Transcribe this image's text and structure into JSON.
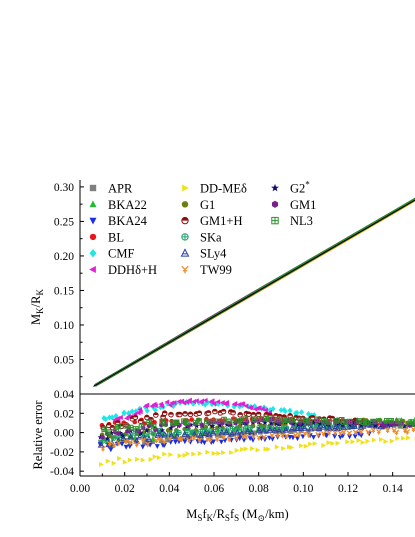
{
  "chart_data": [
    {
      "type": "line",
      "ylabel": "M_K/R_K",
      "xlim": [
        0.0,
        0.15
      ],
      "ylim": [
        0.0,
        0.31
      ],
      "y_ticks": [
        "0.30",
        "0.25",
        "0.20",
        "0.15",
        "0.10",
        "0.05"
      ],
      "y_tick_values": [
        0.3,
        0.25,
        0.2,
        0.15,
        0.1,
        0.05
      ],
      "grid": false,
      "legend_position": "top-left",
      "fit": {
        "x": [
          0.006,
          0.15
        ],
        "y": [
          0.011,
          0.281
        ]
      },
      "series": [
        {
          "name": "APR",
          "marker": "square",
          "color": "#808080",
          "x_end": 0.148
        },
        {
          "name": "BKA22",
          "marker": "triangle-up",
          "color": "#1fbf2f",
          "x_end": 0.15
        },
        {
          "name": "BKA24",
          "marker": "triangle-down",
          "color": "#1a2ee6",
          "x_end": 0.129
        },
        {
          "name": "BL",
          "marker": "circle",
          "color": "#e8161c",
          "x_end": 0.14
        },
        {
          "name": "CMF",
          "marker": "diamond",
          "color": "#20e6e6",
          "x_end": 0.105
        },
        {
          "name": "DDHδ+H",
          "marker": "triangle-left",
          "color": "#e020d4",
          "x_end": 0.085
        },
        {
          "name": "DD-MEδ",
          "marker": "triangle-right",
          "color": "#f0e21a",
          "x_end": 0.15
        },
        {
          "name": "G1",
          "marker": "circle",
          "color": "#6e7d12",
          "x_end": 0.15
        },
        {
          "name": "GM1+H",
          "marker": "half-circle",
          "color": "#8a1010",
          "x_end": 0.129
        },
        {
          "name": "SKa",
          "marker": "circle-plus",
          "color": "#1e9f6a",
          "x_end": 0.135
        },
        {
          "name": "SLy4",
          "marker": "triangle-open",
          "color": "#2c3f9f",
          "x_end": 0.14
        },
        {
          "name": "TW99",
          "marker": "y-shape",
          "color": "#f08a28",
          "x_end": 0.15
        },
        {
          "name": "G2*",
          "marker": "star",
          "color": "#10106e",
          "x_end": 0.145
        },
        {
          "name": "GM1",
          "marker": "hexagon",
          "color": "#7a1f8f",
          "x_end": 0.15
        },
        {
          "name": "NL3",
          "marker": "square-plus",
          "color": "#2e8f2e",
          "x_end": 0.15
        }
      ]
    },
    {
      "type": "scatter",
      "xlabel": "M_S f_K/R_S f_S (M_⊙/km)",
      "ylabel": "Relative error",
      "xlim": [
        0.0,
        0.15
      ],
      "ylim": [
        -0.045,
        0.04
      ],
      "x_ticks": [
        "0.00",
        "0.02",
        "0.04",
        "0.06",
        "0.08",
        "0.10",
        "0.12",
        "0.14"
      ],
      "x_tick_values": [
        0.0,
        0.02,
        0.04,
        0.06,
        0.08,
        0.1,
        0.12,
        0.14
      ],
      "y_ticks": [
        "0.04",
        "0.02",
        "0.00",
        "-0.02",
        "-0.04"
      ],
      "y_tick_values": [
        0.04,
        0.02,
        0.0,
        -0.02,
        -0.04
      ],
      "grid": false,
      "series_trends": [
        {
          "name": "APR",
          "x": [
            0.01,
            0.04,
            0.08,
            0.12,
            0.148
          ],
          "y": [
            -0.012,
            -0.006,
            0.0,
            0.006,
            0.008
          ]
        },
        {
          "name": "BKA22",
          "x": [
            0.01,
            0.04,
            0.08,
            0.12,
            0.15
          ],
          "y": [
            -0.008,
            -0.002,
            0.004,
            0.012,
            0.013
          ]
        },
        {
          "name": "BKA24",
          "x": [
            0.01,
            0.04,
            0.08,
            0.12,
            0.129
          ],
          "y": [
            -0.015,
            -0.011,
            -0.006,
            -0.003,
            -0.002
          ]
        },
        {
          "name": "BL",
          "x": [
            0.01,
            0.04,
            0.08,
            0.12,
            0.14
          ],
          "y": [
            0.008,
            0.012,
            0.014,
            0.011,
            0.009
          ]
        },
        {
          "name": "CMF",
          "x": [
            0.01,
            0.03,
            0.05,
            0.08,
            0.105
          ],
          "y": [
            0.015,
            0.025,
            0.031,
            0.026,
            0.018
          ]
        },
        {
          "name": "DDHδ+H",
          "x": [
            0.015,
            0.03,
            0.05,
            0.07,
            0.085
          ],
          "y": [
            0.01,
            0.026,
            0.033,
            0.03,
            0.022
          ]
        },
        {
          "name": "DD-MEδ",
          "x": [
            0.01,
            0.04,
            0.08,
            0.12,
            0.15
          ],
          "y": [
            -0.03,
            -0.024,
            -0.017,
            -0.01,
            -0.006
          ]
        },
        {
          "name": "G1",
          "x": [
            0.01,
            0.04,
            0.08,
            0.12,
            0.15
          ],
          "y": [
            -0.005,
            0.002,
            0.008,
            0.012,
            0.011
          ]
        },
        {
          "name": "GM1+H",
          "x": [
            0.01,
            0.03,
            0.06,
            0.1,
            0.129
          ],
          "y": [
            0.004,
            0.016,
            0.021,
            0.016,
            0.011
          ]
        },
        {
          "name": "SKa",
          "x": [
            0.01,
            0.04,
            0.08,
            0.12,
            0.135
          ],
          "y": [
            -0.006,
            0.0,
            0.004,
            0.008,
            0.009
          ]
        },
        {
          "name": "SLy4",
          "x": [
            0.01,
            0.04,
            0.08,
            0.12,
            0.14
          ],
          "y": [
            -0.01,
            -0.004,
            0.001,
            0.006,
            0.008
          ]
        },
        {
          "name": "TW99",
          "x": [
            0.01,
            0.04,
            0.08,
            0.12,
            0.15
          ],
          "y": [
            -0.014,
            -0.008,
            -0.004,
            0.0,
            0.002
          ]
        },
        {
          "name": "G2*",
          "x": [
            0.01,
            0.04,
            0.08,
            0.12,
            0.145
          ],
          "y": [
            -0.004,
            0.006,
            0.01,
            0.009,
            0.008
          ]
        },
        {
          "name": "GM1",
          "x": [
            0.01,
            0.04,
            0.08,
            0.12,
            0.15
          ],
          "y": [
            -0.002,
            0.008,
            0.012,
            0.01,
            0.008
          ]
        },
        {
          "name": "NL3",
          "x": [
            0.01,
            0.04,
            0.08,
            0.12,
            0.15
          ],
          "y": [
            0.002,
            0.01,
            0.014,
            0.012,
            0.01
          ]
        }
      ]
    }
  ]
}
